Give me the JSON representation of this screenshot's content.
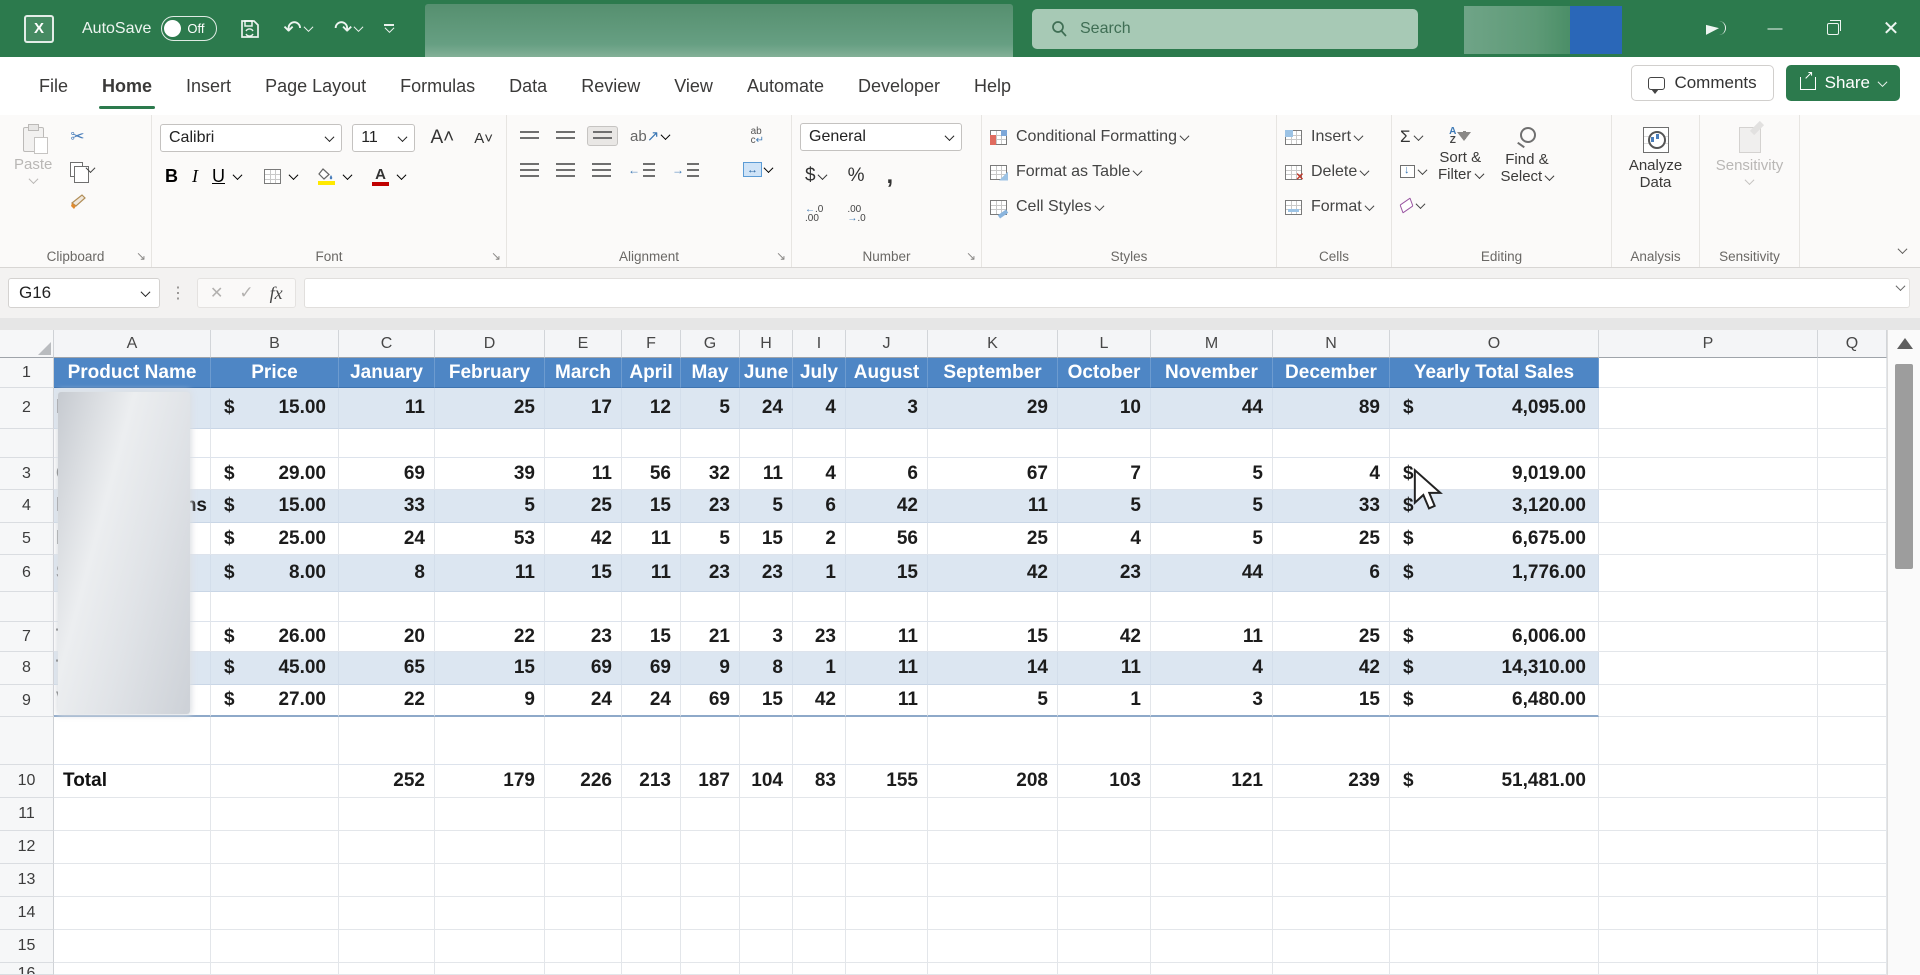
{
  "colors": {
    "titlebar_green": "#2c7a4d",
    "accent_green": "#217346",
    "table_header_blue": "#4e86c5",
    "band_blue": "#dce6f1"
  },
  "titlebar": {
    "app": "Excel",
    "autosave_label": "AutoSave",
    "autosave_state": "Off",
    "quick_access": {
      "save": "save",
      "undo": "undo",
      "redo": "redo",
      "more": "customize-quick-access-toolbar"
    },
    "search_placeholder": "Search"
  },
  "tabs": {
    "items": [
      "File",
      "Home",
      "Insert",
      "Page Layout",
      "Formulas",
      "Data",
      "Review",
      "View",
      "Automate",
      "Developer",
      "Help"
    ],
    "active": "Home",
    "comments_label": "Comments",
    "share_label": "Share"
  },
  "ribbon": {
    "clipboard": {
      "label": "Clipboard",
      "paste": "Paste"
    },
    "font": {
      "label": "Font",
      "font_name": "Calibri",
      "font_size": "11",
      "bold": "B",
      "italic": "I",
      "underline": "U"
    },
    "alignment": {
      "label": "Alignment"
    },
    "number": {
      "label": "Number",
      "format": "General",
      "currency": "$",
      "percent": "%",
      "comma": ","
    },
    "styles": {
      "label": "Styles",
      "items": [
        "Conditional Formatting",
        "Format as Table",
        "Cell Styles"
      ]
    },
    "cells": {
      "label": "Cells",
      "items": [
        "Insert",
        "Delete",
        "Format"
      ]
    },
    "editing": {
      "label": "Editing",
      "sum": "Σ",
      "sort_filter_1": "Sort &",
      "sort_filter_2": "Filter",
      "find_select_1": "Find &",
      "find_select_2": "Select"
    },
    "analysis": {
      "label": "Analysis",
      "analyze_1": "Analyze",
      "analyze_2": "Data"
    },
    "sensitivity": {
      "label": "Sensitivity",
      "button": "Sensitivity"
    }
  },
  "formula_bar": {
    "name_box": "G16",
    "cancel": "✕",
    "enter": "✓",
    "fx": "fx",
    "formula": ""
  },
  "sheet": {
    "col_headers": [
      "A",
      "B",
      "C",
      "D",
      "E",
      "F",
      "G",
      "H",
      "I",
      "J",
      "K",
      "L",
      "M",
      "N",
      "O",
      "P",
      "Q"
    ],
    "header_row": {
      "product": "Product Name",
      "price": "Price",
      "months": [
        "January",
        "February",
        "March",
        "April",
        "May",
        "June",
        "July",
        "August",
        "September",
        "October",
        "November",
        "December"
      ],
      "total": "Yearly Total Sales"
    },
    "currency_symbol": "$",
    "data_rows": [
      {
        "n": "2",
        "band": true,
        "name_fragment_left": "l",
        "name_fragment_right": "",
        "price": "15.00",
        "months": [
          "11",
          "25",
          "17",
          "12",
          "5",
          "24",
          "4",
          "3",
          "29",
          "10",
          "44",
          "89"
        ],
        "total": "4,095.00"
      },
      {
        "n": "3",
        "band": false,
        "name_fragment_left": "C",
        "name_fragment_right": "",
        "price": "29.00",
        "months": [
          "69",
          "39",
          "11",
          "56",
          "32",
          "11",
          "4",
          "6",
          "67",
          "7",
          "5",
          "4"
        ],
        "total": "9,019.00"
      },
      {
        "n": "4",
        "band": true,
        "name_fragment_left": "l",
        "name_fragment_right": "ns",
        "price": "15.00",
        "months": [
          "33",
          "5",
          "25",
          "15",
          "23",
          "5",
          "6",
          "42",
          "11",
          "5",
          "5",
          "33"
        ],
        "total": "3,120.00"
      },
      {
        "n": "5",
        "band": false,
        "name_fragment_left": "l",
        "name_fragment_right": "",
        "price": "25.00",
        "months": [
          "24",
          "53",
          "42",
          "11",
          "5",
          "15",
          "2",
          "56",
          "25",
          "4",
          "5",
          "25"
        ],
        "total": "6,675.00"
      },
      {
        "n": "6",
        "band": true,
        "name_fragment_left": "S",
        "name_fragment_right": "",
        "price": "8.00",
        "months": [
          "8",
          "11",
          "15",
          "11",
          "23",
          "23",
          "1",
          "15",
          "42",
          "23",
          "44",
          "6"
        ],
        "total": "1,776.00"
      },
      {
        "n": "7",
        "band": false,
        "name_fragment_left": "T",
        "name_fragment_right": "",
        "price": "26.00",
        "months": [
          "20",
          "22",
          "23",
          "15",
          "21",
          "3",
          "23",
          "11",
          "15",
          "42",
          "11",
          "25"
        ],
        "total": "6,006.00"
      },
      {
        "n": "8",
        "band": true,
        "name_fragment_left": "T",
        "name_fragment_right": "",
        "price": "45.00",
        "months": [
          "65",
          "15",
          "69",
          "69",
          "9",
          "8",
          "1",
          "11",
          "14",
          "11",
          "4",
          "42"
        ],
        "total": "14,310.00"
      },
      {
        "n": "9",
        "band": false,
        "name_fragment_left": "V",
        "name_fragment_right": "",
        "price": "27.00",
        "months": [
          "22",
          "9",
          "24",
          "24",
          "69",
          "15",
          "42",
          "11",
          "5",
          "1",
          "3",
          "15"
        ],
        "total": "6,480.00"
      }
    ],
    "total_row": {
      "n": "10",
      "label": "Total",
      "months": [
        "252",
        "179",
        "226",
        "213",
        "187",
        "104",
        "83",
        "155",
        "208",
        "103",
        "121",
        "239"
      ],
      "total": "51,481.00"
    },
    "empty_row_numbers": [
      "11",
      "12",
      "13",
      "14",
      "15"
    ],
    "clipped_row_number": "16",
    "header_row_number": "1"
  }
}
